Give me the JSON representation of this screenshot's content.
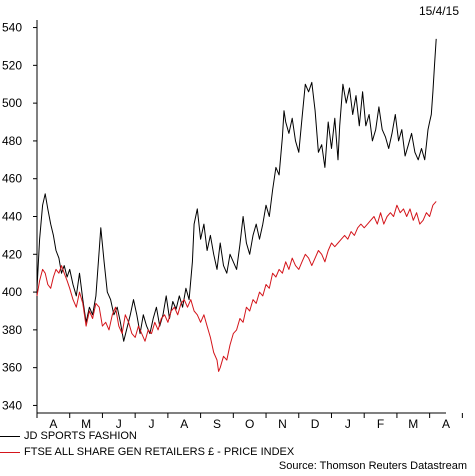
{
  "date_label": "15/4/15",
  "source": "Source: Thomson Reuters Datastream",
  "chart_data": {
    "type": "line",
    "title": "",
    "xlabel": "",
    "ylabel": "",
    "ylim": [
      336,
      544
    ],
    "yticks": [
      340,
      360,
      380,
      400,
      420,
      440,
      460,
      480,
      500,
      520,
      540
    ],
    "xticks": [
      "A",
      "M",
      "J",
      "J",
      "A",
      "S",
      "O",
      "N",
      "D",
      "J",
      "F",
      "M",
      "A"
    ],
    "x_range": [
      0,
      12.5
    ],
    "grid": false,
    "legend_position": "bottom-left",
    "series": [
      {
        "name": "JD SPORTS FASHION",
        "color": "#000000",
        "points": [
          [
            0.0,
            402
          ],
          [
            0.08,
            428
          ],
          [
            0.17,
            446
          ],
          [
            0.25,
            452
          ],
          [
            0.33,
            444
          ],
          [
            0.42,
            436
          ],
          [
            0.5,
            430
          ],
          [
            0.58,
            422
          ],
          [
            0.67,
            418
          ],
          [
            0.75,
            410
          ],
          [
            0.83,
            414
          ],
          [
            0.92,
            408
          ],
          [
            1.0,
            412
          ],
          [
            1.1,
            404
          ],
          [
            1.2,
            398
          ],
          [
            1.3,
            410
          ],
          [
            1.4,
            396
          ],
          [
            1.5,
            384
          ],
          [
            1.6,
            392
          ],
          [
            1.7,
            388
          ],
          [
            1.8,
            398
          ],
          [
            1.9,
            422
          ],
          [
            1.95,
            434
          ],
          [
            2.05,
            416
          ],
          [
            2.15,
            400
          ],
          [
            2.25,
            396
          ],
          [
            2.35,
            388
          ],
          [
            2.45,
            392
          ],
          [
            2.55,
            384
          ],
          [
            2.65,
            374
          ],
          [
            2.75,
            381
          ],
          [
            2.85,
            388
          ],
          [
            2.95,
            396
          ],
          [
            3.05,
            388
          ],
          [
            3.15,
            378
          ],
          [
            3.25,
            388
          ],
          [
            3.35,
            382
          ],
          [
            3.45,
            378
          ],
          [
            3.55,
            386
          ],
          [
            3.65,
            392
          ],
          [
            3.75,
            382
          ],
          [
            3.85,
            388
          ],
          [
            3.95,
            398
          ],
          [
            4.05,
            386
          ],
          [
            4.15,
            395
          ],
          [
            4.25,
            391
          ],
          [
            4.35,
            398
          ],
          [
            4.45,
            392
          ],
          [
            4.55,
            402
          ],
          [
            4.65,
            396
          ],
          [
            4.75,
            416
          ],
          [
            4.8,
            436
          ],
          [
            4.9,
            444
          ],
          [
            5.0,
            428
          ],
          [
            5.1,
            436
          ],
          [
            5.2,
            422
          ],
          [
            5.3,
            430
          ],
          [
            5.4,
            420
          ],
          [
            5.5,
            412
          ],
          [
            5.6,
            426
          ],
          [
            5.7,
            414
          ],
          [
            5.8,
            410
          ],
          [
            5.9,
            420
          ],
          [
            6.0,
            416
          ],
          [
            6.1,
            412
          ],
          [
            6.2,
            425
          ],
          [
            6.3,
            440
          ],
          [
            6.4,
            426
          ],
          [
            6.5,
            420
          ],
          [
            6.6,
            430
          ],
          [
            6.7,
            436
          ],
          [
            6.8,
            428
          ],
          [
            6.9,
            436
          ],
          [
            7.0,
            446
          ],
          [
            7.1,
            440
          ],
          [
            7.2,
            454
          ],
          [
            7.3,
            466
          ],
          [
            7.4,
            462
          ],
          [
            7.5,
            482
          ],
          [
            7.55,
            496
          ],
          [
            7.6,
            490
          ],
          [
            7.7,
            484
          ],
          [
            7.8,
            492
          ],
          [
            7.9,
            480
          ],
          [
            8.0,
            474
          ],
          [
            8.1,
            492
          ],
          [
            8.2,
            510
          ],
          [
            8.3,
            506
          ],
          [
            8.4,
            511
          ],
          [
            8.5,
            496
          ],
          [
            8.6,
            474
          ],
          [
            8.7,
            478
          ],
          [
            8.8,
            466
          ],
          [
            8.9,
            490
          ],
          [
            9.0,
            476
          ],
          [
            9.1,
            492
          ],
          [
            9.2,
            470
          ],
          [
            9.25,
            488
          ],
          [
            9.35,
            510
          ],
          [
            9.45,
            500
          ],
          [
            9.55,
            508
          ],
          [
            9.65,
            494
          ],
          [
            9.75,
            504
          ],
          [
            9.85,
            488
          ],
          [
            9.95,
            506
          ],
          [
            10.05,
            488
          ],
          [
            10.15,
            494
          ],
          [
            10.25,
            480
          ],
          [
            10.35,
            486
          ],
          [
            10.45,
            498
          ],
          [
            10.55,
            486
          ],
          [
            10.65,
            482
          ],
          [
            10.75,
            476
          ],
          [
            10.85,
            484
          ],
          [
            10.95,
            494
          ],
          [
            11.05,
            480
          ],
          [
            11.15,
            486
          ],
          [
            11.25,
            472
          ],
          [
            11.35,
            478
          ],
          [
            11.45,
            484
          ],
          [
            11.55,
            474
          ],
          [
            11.65,
            470
          ],
          [
            11.75,
            476
          ],
          [
            11.85,
            470
          ],
          [
            11.9,
            478
          ],
          [
            11.95,
            486
          ],
          [
            12.0,
            490
          ],
          [
            12.05,
            494
          ],
          [
            12.1,
            506
          ],
          [
            12.15,
            520
          ],
          [
            12.2,
            534
          ]
        ]
      },
      {
        "name": "FTSE ALL SHARE GEN RETAILERS £ - PRICE INDEX",
        "color": "#d4151b",
        "points": [
          [
            0.0,
            398
          ],
          [
            0.08,
            406
          ],
          [
            0.17,
            412
          ],
          [
            0.25,
            410
          ],
          [
            0.33,
            404
          ],
          [
            0.42,
            402
          ],
          [
            0.5,
            408
          ],
          [
            0.58,
            412
          ],
          [
            0.67,
            410
          ],
          [
            0.75,
            414
          ],
          [
            0.83,
            410
          ],
          [
            0.92,
            406
          ],
          [
            1.0,
            402
          ],
          [
            1.1,
            396
          ],
          [
            1.2,
            392
          ],
          [
            1.3,
            400
          ],
          [
            1.4,
            394
          ],
          [
            1.5,
            382
          ],
          [
            1.6,
            390
          ],
          [
            1.7,
            386
          ],
          [
            1.8,
            394
          ],
          [
            1.9,
            392
          ],
          [
            2.0,
            382
          ],
          [
            2.1,
            384
          ],
          [
            2.2,
            380
          ],
          [
            2.3,
            388
          ],
          [
            2.4,
            392
          ],
          [
            2.5,
            382
          ],
          [
            2.6,
            378
          ],
          [
            2.7,
            388
          ],
          [
            2.8,
            384
          ],
          [
            2.9,
            378
          ],
          [
            3.0,
            376
          ],
          [
            3.1,
            382
          ],
          [
            3.2,
            378
          ],
          [
            3.3,
            374
          ],
          [
            3.4,
            380
          ],
          [
            3.5,
            378
          ],
          [
            3.6,
            384
          ],
          [
            3.7,
            380
          ],
          [
            3.8,
            386
          ],
          [
            3.9,
            388
          ],
          [
            4.0,
            384
          ],
          [
            4.1,
            390
          ],
          [
            4.2,
            392
          ],
          [
            4.3,
            388
          ],
          [
            4.4,
            394
          ],
          [
            4.5,
            396
          ],
          [
            4.6,
            392
          ],
          [
            4.7,
            396
          ],
          [
            4.8,
            390
          ],
          [
            4.9,
            388
          ],
          [
            5.0,
            384
          ],
          [
            5.1,
            388
          ],
          [
            5.2,
            382
          ],
          [
            5.3,
            376
          ],
          [
            5.4,
            368
          ],
          [
            5.5,
            364
          ],
          [
            5.55,
            358
          ],
          [
            5.6,
            360
          ],
          [
            5.7,
            366
          ],
          [
            5.8,
            364
          ],
          [
            5.9,
            372
          ],
          [
            6.0,
            378
          ],
          [
            6.1,
            380
          ],
          [
            6.2,
            386
          ],
          [
            6.3,
            384
          ],
          [
            6.4,
            392
          ],
          [
            6.5,
            390
          ],
          [
            6.6,
            396
          ],
          [
            6.7,
            394
          ],
          [
            6.8,
            400
          ],
          [
            6.9,
            398
          ],
          [
            7.0,
            404
          ],
          [
            7.1,
            402
          ],
          [
            7.2,
            410
          ],
          [
            7.3,
            408
          ],
          [
            7.4,
            412
          ],
          [
            7.5,
            410
          ],
          [
            7.6,
            416
          ],
          [
            7.7,
            412
          ],
          [
            7.8,
            418
          ],
          [
            7.9,
            414
          ],
          [
            8.0,
            412
          ],
          [
            8.1,
            416
          ],
          [
            8.2,
            420
          ],
          [
            8.3,
            418
          ],
          [
            8.4,
            414
          ],
          [
            8.5,
            418
          ],
          [
            8.6,
            422
          ],
          [
            8.7,
            420
          ],
          [
            8.8,
            416
          ],
          [
            8.9,
            422
          ],
          [
            9.0,
            426
          ],
          [
            9.1,
            424
          ],
          [
            9.2,
            426
          ],
          [
            9.3,
            428
          ],
          [
            9.4,
            430
          ],
          [
            9.5,
            428
          ],
          [
            9.6,
            432
          ],
          [
            9.7,
            430
          ],
          [
            9.8,
            434
          ],
          [
            9.9,
            436
          ],
          [
            10.0,
            434
          ],
          [
            10.1,
            436
          ],
          [
            10.2,
            438
          ],
          [
            10.3,
            440
          ],
          [
            10.4,
            436
          ],
          [
            10.5,
            442
          ],
          [
            10.6,
            436
          ],
          [
            10.7,
            440
          ],
          [
            10.8,
            442
          ],
          [
            10.9,
            440
          ],
          [
            11.0,
            446
          ],
          [
            11.1,
            442
          ],
          [
            11.2,
            444
          ],
          [
            11.3,
            440
          ],
          [
            11.4,
            444
          ],
          [
            11.5,
            438
          ],
          [
            11.6,
            442
          ],
          [
            11.7,
            436
          ],
          [
            11.8,
            438
          ],
          [
            11.9,
            442
          ],
          [
            12.0,
            440
          ],
          [
            12.1,
            446
          ],
          [
            12.2,
            448
          ]
        ]
      }
    ]
  }
}
